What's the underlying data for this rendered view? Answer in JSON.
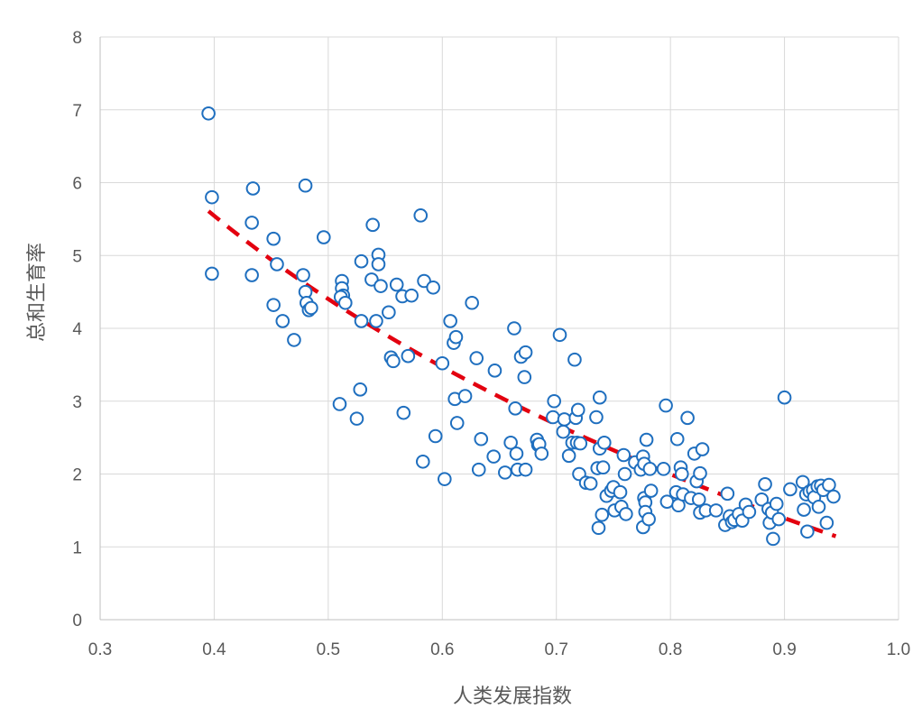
{
  "chart_data": {
    "type": "scatter",
    "xlabel": "人类发展指数",
    "ylabel": "总和生育率",
    "xlim": [
      0.3,
      1.0
    ],
    "ylim": [
      0,
      8
    ],
    "xticks": [
      "0.3",
      "0.4",
      "0.5",
      "0.6",
      "0.7",
      "0.8",
      "0.9",
      "1.0"
    ],
    "yticks": [
      "0",
      "1",
      "2",
      "3",
      "4",
      "5",
      "6",
      "7",
      "8"
    ],
    "grid": true,
    "legend": "none",
    "colors": {
      "marker": "#1f6fbf",
      "trendline": "#e3000f"
    },
    "trendline": {
      "style": "dashed",
      "x": [
        0.395,
        0.945
      ]
    },
    "points": [
      [
        0.395,
        6.95
      ],
      [
        0.398,
        5.8
      ],
      [
        0.398,
        4.75
      ],
      [
        0.434,
        5.92
      ],
      [
        0.433,
        5.45
      ],
      [
        0.433,
        4.73
      ],
      [
        0.452,
        5.23
      ],
      [
        0.455,
        4.88
      ],
      [
        0.452,
        4.32
      ],
      [
        0.46,
        4.1
      ],
      [
        0.47,
        3.84
      ],
      [
        0.48,
        5.96
      ],
      [
        0.478,
        4.73
      ],
      [
        0.48,
        4.5
      ],
      [
        0.481,
        4.35
      ],
      [
        0.483,
        4.25
      ],
      [
        0.485,
        4.28
      ],
      [
        0.496,
        5.25
      ],
      [
        0.512,
        4.65
      ],
      [
        0.512,
        4.55
      ],
      [
        0.513,
        4.45
      ],
      [
        0.511,
        4.43
      ],
      [
        0.515,
        4.35
      ],
      [
        0.51,
        2.96
      ],
      [
        0.525,
        2.76
      ],
      [
        0.528,
        3.16
      ],
      [
        0.529,
        4.92
      ],
      [
        0.529,
        4.1
      ],
      [
        0.539,
        5.42
      ],
      [
        0.538,
        4.67
      ],
      [
        0.544,
        5.01
      ],
      [
        0.544,
        4.88
      ],
      [
        0.546,
        4.58
      ],
      [
        0.542,
        4.1
      ],
      [
        0.553,
        4.22
      ],
      [
        0.555,
        3.6
      ],
      [
        0.557,
        3.55
      ],
      [
        0.56,
        4.6
      ],
      [
        0.565,
        4.44
      ],
      [
        0.573,
        4.45
      ],
      [
        0.566,
        2.84
      ],
      [
        0.57,
        3.62
      ],
      [
        0.581,
        5.55
      ],
      [
        0.584,
        4.65
      ],
      [
        0.583,
        2.17
      ],
      [
        0.592,
        4.56
      ],
      [
        0.594,
        2.52
      ],
      [
        0.6,
        3.52
      ],
      [
        0.602,
        1.93
      ],
      [
        0.607,
        4.1
      ],
      [
        0.61,
        3.8
      ],
      [
        0.612,
        3.88
      ],
      [
        0.611,
        3.03
      ],
      [
        0.613,
        2.7
      ],
      [
        0.62,
        3.07
      ],
      [
        0.626,
        4.35
      ],
      [
        0.63,
        3.59
      ],
      [
        0.632,
        2.06
      ],
      [
        0.634,
        2.48
      ],
      [
        0.646,
        3.42
      ],
      [
        0.645,
        2.24
      ],
      [
        0.655,
        2.02
      ],
      [
        0.66,
        2.43
      ],
      [
        0.663,
        4.0
      ],
      [
        0.664,
        2.9
      ],
      [
        0.665,
        2.28
      ],
      [
        0.666,
        2.06
      ],
      [
        0.669,
        3.61
      ],
      [
        0.673,
        3.67
      ],
      [
        0.672,
        3.33
      ],
      [
        0.673,
        2.06
      ],
      [
        0.683,
        2.47
      ],
      [
        0.684,
        2.4
      ],
      [
        0.685,
        2.41
      ],
      [
        0.687,
        2.28
      ],
      [
        0.698,
        3.0
      ],
      [
        0.697,
        2.78
      ],
      [
        0.703,
        3.91
      ],
      [
        0.707,
        2.75
      ],
      [
        0.706,
        2.58
      ],
      [
        0.711,
        2.25
      ],
      [
        0.714,
        2.43
      ],
      [
        0.716,
        3.57
      ],
      [
        0.717,
        2.77
      ],
      [
        0.719,
        2.88
      ],
      [
        0.718,
        2.43
      ],
      [
        0.72,
        2.0
      ],
      [
        0.721,
        2.42
      ],
      [
        0.726,
        1.88
      ],
      [
        0.73,
        1.87
      ],
      [
        0.735,
        2.78
      ],
      [
        0.738,
        3.05
      ],
      [
        0.738,
        2.35
      ],
      [
        0.742,
        2.43
      ],
      [
        0.736,
        2.08
      ],
      [
        0.741,
        2.09
      ],
      [
        0.737,
        1.26
      ],
      [
        0.74,
        1.44
      ],
      [
        0.744,
        1.7
      ],
      [
        0.748,
        1.77
      ],
      [
        0.75,
        1.82
      ],
      [
        0.751,
        1.5
      ],
      [
        0.756,
        1.75
      ],
      [
        0.757,
        1.55
      ],
      [
        0.759,
        2.26
      ],
      [
        0.76,
        2.0
      ],
      [
        0.761,
        1.45
      ],
      [
        0.769,
        2.16
      ],
      [
        0.774,
        2.06
      ],
      [
        0.776,
        2.24
      ],
      [
        0.777,
        2.14
      ],
      [
        0.777,
        1.67
      ],
      [
        0.778,
        1.61
      ],
      [
        0.778,
        1.48
      ],
      [
        0.776,
        1.27
      ],
      [
        0.779,
        2.47
      ],
      [
        0.781,
        1.38
      ],
      [
        0.783,
        1.77
      ],
      [
        0.782,
        2.07
      ],
      [
        0.794,
        2.07
      ],
      [
        0.796,
        2.94
      ],
      [
        0.797,
        1.62
      ],
      [
        0.806,
        2.48
      ],
      [
        0.805,
        1.75
      ],
      [
        0.807,
        1.57
      ],
      [
        0.809,
        2.09
      ],
      [
        0.81,
        2.0
      ],
      [
        0.811,
        1.72
      ],
      [
        0.815,
        2.77
      ],
      [
        0.818,
        1.67
      ],
      [
        0.821,
        2.28
      ],
      [
        0.823,
        1.9
      ],
      [
        0.826,
        2.01
      ],
      [
        0.825,
        1.65
      ],
      [
        0.826,
        1.47
      ],
      [
        0.828,
        2.34
      ],
      [
        0.831,
        1.5
      ],
      [
        0.84,
        1.5
      ],
      [
        0.848,
        1.3
      ],
      [
        0.85,
        1.73
      ],
      [
        0.852,
        1.42
      ],
      [
        0.854,
        1.34
      ],
      [
        0.856,
        1.37
      ],
      [
        0.86,
        1.45
      ],
      [
        0.863,
        1.36
      ],
      [
        0.866,
        1.58
      ],
      [
        0.869,
        1.48
      ],
      [
        0.88,
        1.65
      ],
      [
        0.883,
        1.86
      ],
      [
        0.886,
        1.52
      ],
      [
        0.887,
        1.33
      ],
      [
        0.889,
        1.47
      ],
      [
        0.89,
        1.11
      ],
      [
        0.893,
        1.59
      ],
      [
        0.895,
        1.38
      ],
      [
        0.9,
        3.05
      ],
      [
        0.905,
        1.79
      ],
      [
        0.916,
        1.89
      ],
      [
        0.917,
        1.51
      ],
      [
        0.919,
        1.72
      ],
      [
        0.92,
        1.21
      ],
      [
        0.922,
        1.76
      ],
      [
        0.925,
        1.78
      ],
      [
        0.926,
        1.68
      ],
      [
        0.929,
        1.83
      ],
      [
        0.93,
        1.55
      ],
      [
        0.932,
        1.84
      ],
      [
        0.934,
        1.78
      ],
      [
        0.937,
        1.33
      ],
      [
        0.939,
        1.85
      ],
      [
        0.943,
        1.69
      ]
    ]
  }
}
